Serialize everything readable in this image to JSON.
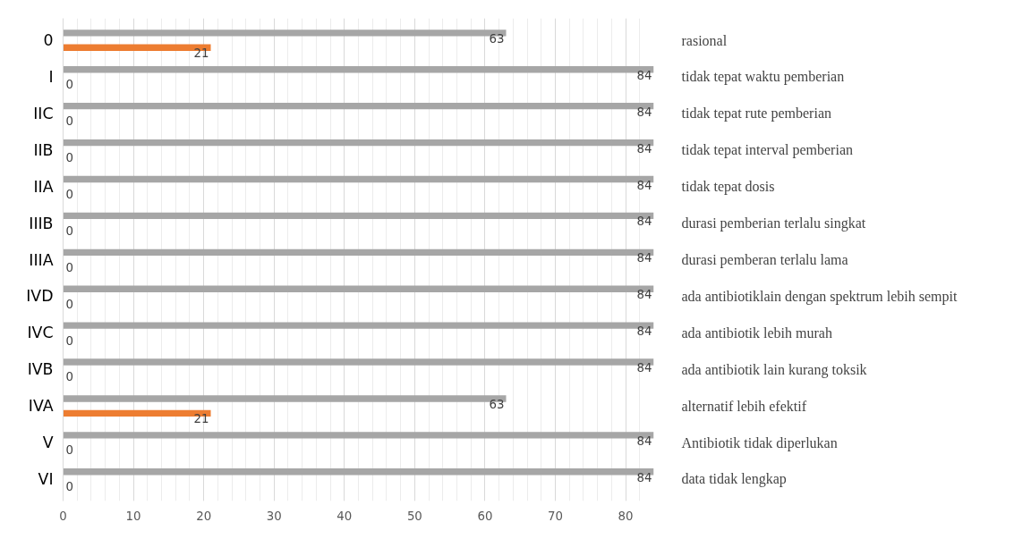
{
  "chart_data": {
    "type": "bar",
    "orientation": "horizontal",
    "categories": [
      "0",
      "I",
      "IIC",
      "IIB",
      "IIA",
      "IIIB",
      "IIIA",
      "IVD",
      "IVC",
      "IVB",
      "IVA",
      "V",
      "VI"
    ],
    "series": [
      {
        "color": "#a6a6a6",
        "values": [
          63,
          84,
          84,
          84,
          84,
          84,
          84,
          84,
          84,
          84,
          63,
          84,
          84
        ]
      },
      {
        "color": "#ed7d31",
        "values": [
          21,
          0,
          0,
          0,
          0,
          0,
          0,
          0,
          0,
          0,
          21,
          0,
          0
        ]
      }
    ],
    "xlim": [
      0,
      84
    ],
    "xticks": [
      0,
      10,
      20,
      30,
      40,
      50,
      60,
      70,
      80
    ],
    "grid": "x",
    "data_labels": true,
    "annotations": [
      "rasional",
      "tidak tepat waktu pemberian",
      "tidak tepat rute pemberian",
      "tidak tepat interval pemberian",
      "tidak tepat dosis",
      "durasi pemberian terlalu singkat",
      "durasi pemberan terlalu lama",
      "ada antibiotiklain dengan spektrum lebih sempit",
      "ada antibiotik lebih murah",
      "ada antibiotik lain kurang toksik",
      "alternatif lebih efektif",
      "Antibiotik tidak diperlukan",
      "data tidak lengkap"
    ]
  }
}
